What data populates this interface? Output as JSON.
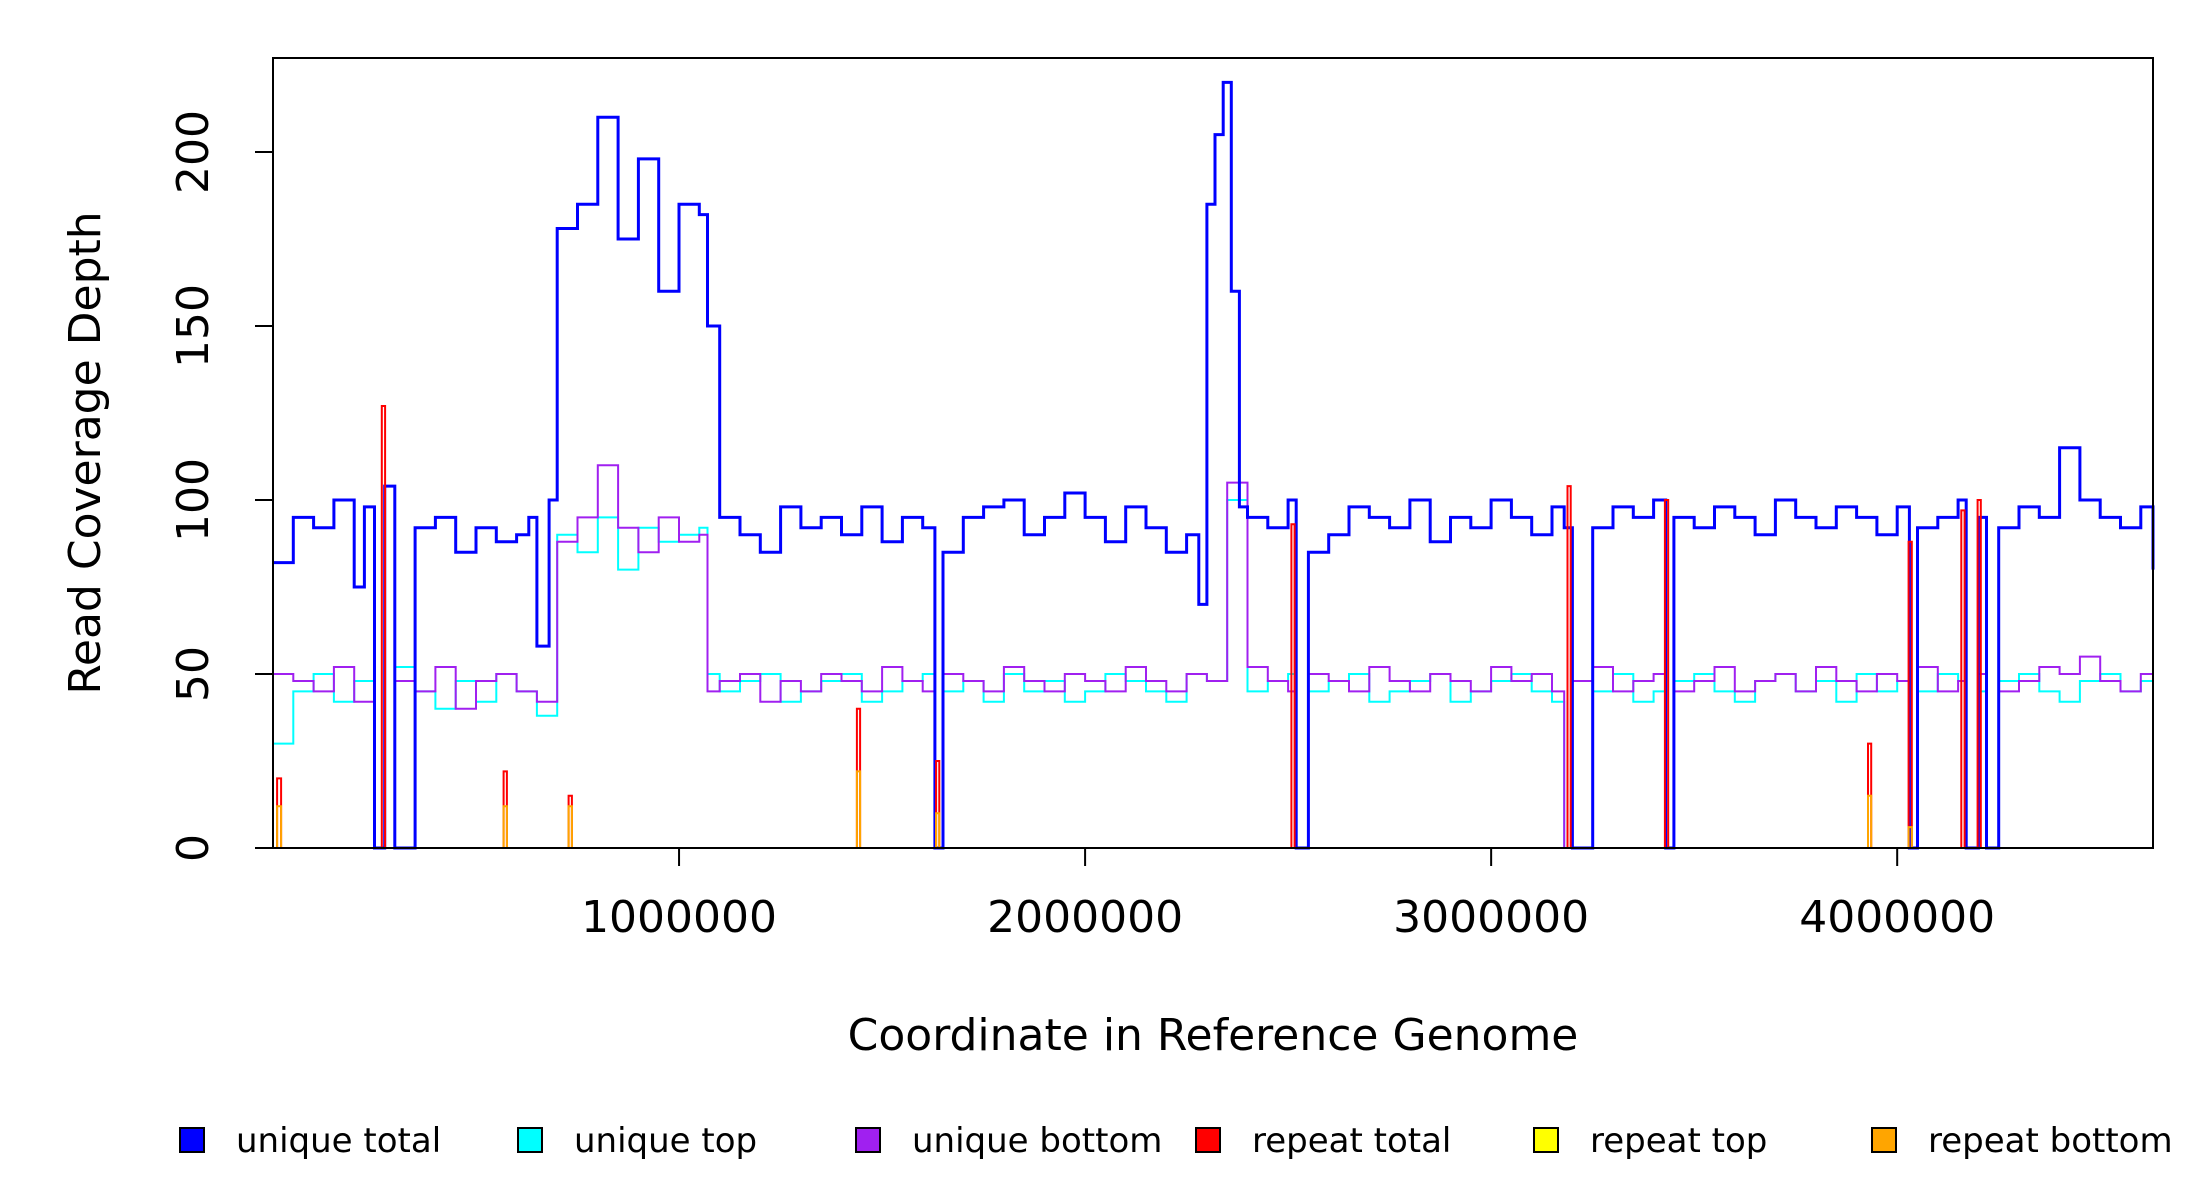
{
  "chart_data": {
    "type": "line",
    "xlabel": "Coordinate in Reference Genome",
    "ylabel": "Read Coverage Depth",
    "xlim": [
      1,
      4630000
    ],
    "ylim": [
      0,
      227
    ],
    "x_ticks": [
      1000000,
      2000000,
      3000000,
      4000000
    ],
    "y_ticks": [
      0,
      50,
      100,
      150,
      200
    ],
    "legend_position": "bottom",
    "series": [
      {
        "name": "unique total",
        "color": "#0000FF",
        "x": [
          0,
          50000,
          100000,
          150000,
          200000,
          225000,
          250000,
          275000,
          300000,
          350000,
          400000,
          450000,
          500000,
          550000,
          600000,
          630000,
          650000,
          680000,
          700000,
          750000,
          800000,
          850000,
          900000,
          950000,
          1000000,
          1050000,
          1070000,
          1100000,
          1150000,
          1200000,
          1250000,
          1300000,
          1350000,
          1400000,
          1450000,
          1500000,
          1550000,
          1600000,
          1630000,
          1650000,
          1700000,
          1750000,
          1800000,
          1850000,
          1900000,
          1950000,
          2000000,
          2050000,
          2100000,
          2150000,
          2200000,
          2250000,
          2280000,
          2300000,
          2320000,
          2340000,
          2360000,
          2380000,
          2400000,
          2450000,
          2500000,
          2520000,
          2550000,
          2600000,
          2650000,
          2700000,
          2750000,
          2800000,
          2850000,
          2900000,
          2950000,
          3000000,
          3050000,
          3100000,
          3150000,
          3180000,
          3200000,
          3250000,
          3300000,
          3350000,
          3400000,
          3430000,
          3450000,
          3500000,
          3550000,
          3600000,
          3650000,
          3700000,
          3750000,
          3800000,
          3850000,
          3900000,
          3950000,
          4000000,
          4030000,
          4050000,
          4100000,
          4150000,
          4170000,
          4200000,
          4220000,
          4250000,
          4300000,
          4350000,
          4400000,
          4450000,
          4500000,
          4550000,
          4600000,
          4630000
        ],
        "values": [
          82,
          95,
          92,
          100,
          75,
          98,
          0,
          104,
          0,
          92,
          95,
          85,
          92,
          88,
          90,
          95,
          58,
          100,
          178,
          185,
          210,
          175,
          198,
          160,
          185,
          182,
          150,
          95,
          90,
          85,
          98,
          92,
          95,
          90,
          98,
          88,
          95,
          92,
          0,
          85,
          95,
          98,
          100,
          90,
          95,
          102,
          95,
          88,
          98,
          92,
          85,
          90,
          70,
          185,
          205,
          220,
          160,
          98,
          95,
          92,
          100,
          0,
          85,
          90,
          98,
          95,
          92,
          100,
          88,
          95,
          92,
          100,
          95,
          90,
          98,
          92,
          0,
          92,
          98,
          95,
          100,
          0,
          95,
          92,
          98,
          95,
          90,
          100,
          95,
          92,
          98,
          95,
          90,
          98,
          0,
          92,
          95,
          100,
          0,
          95,
          0,
          92,
          98,
          95,
          115,
          100,
          95,
          92,
          98,
          80
        ]
      },
      {
        "name": "unique top",
        "color": "#00FFFF",
        "x": [
          0,
          50000,
          100000,
          150000,
          200000,
          250000,
          300000,
          350000,
          400000,
          450000,
          500000,
          550000,
          600000,
          650000,
          700000,
          750000,
          800000,
          850000,
          900000,
          950000,
          1000000,
          1050000,
          1070000,
          1100000,
          1150000,
          1200000,
          1250000,
          1300000,
          1350000,
          1400000,
          1450000,
          1500000,
          1550000,
          1600000,
          1630000,
          1650000,
          1700000,
          1750000,
          1800000,
          1850000,
          1900000,
          1950000,
          2000000,
          2050000,
          2100000,
          2150000,
          2200000,
          2250000,
          2300000,
          2350000,
          2400000,
          2450000,
          2500000,
          2520000,
          2550000,
          2600000,
          2650000,
          2700000,
          2750000,
          2800000,
          2850000,
          2900000,
          2950000,
          3000000,
          3050000,
          3100000,
          3150000,
          3180000,
          3200000,
          3250000,
          3300000,
          3350000,
          3400000,
          3430000,
          3450000,
          3500000,
          3550000,
          3600000,
          3650000,
          3700000,
          3750000,
          3800000,
          3850000,
          3900000,
          3950000,
          4000000,
          4030000,
          4050000,
          4100000,
          4150000,
          4170000,
          4200000,
          4220000,
          4250000,
          4300000,
          4350000,
          4400000,
          4450000,
          4500000,
          4550000,
          4600000,
          4630000
        ],
        "values": [
          30,
          45,
          50,
          42,
          48,
          0,
          52,
          45,
          40,
          48,
          42,
          50,
          45,
          38,
          90,
          85,
          95,
          80,
          92,
          88,
          90,
          92,
          50,
          45,
          48,
          50,
          42,
          45,
          48,
          50,
          42,
          45,
          48,
          50,
          0,
          45,
          48,
          42,
          50,
          45,
          48,
          42,
          45,
          50,
          48,
          45,
          42,
          50,
          48,
          100,
          45,
          48,
          50,
          0,
          45,
          48,
          50,
          42,
          45,
          48,
          50,
          42,
          45,
          48,
          50,
          45,
          42,
          0,
          48,
          45,
          50,
          42,
          45,
          0,
          48,
          50,
          45,
          42,
          48,
          50,
          45,
          48,
          42,
          50,
          45,
          48,
          0,
          45,
          50,
          48,
          0,
          45,
          0,
          48,
          50,
          45,
          42,
          48,
          50,
          45,
          48,
          40
        ]
      },
      {
        "name": "unique bottom",
        "color": "#A020F0",
        "x": [
          0,
          50000,
          100000,
          150000,
          200000,
          250000,
          300000,
          350000,
          400000,
          450000,
          500000,
          550000,
          600000,
          650000,
          700000,
          750000,
          800000,
          850000,
          900000,
          950000,
          1000000,
          1050000,
          1070000,
          1100000,
          1150000,
          1200000,
          1250000,
          1300000,
          1350000,
          1400000,
          1450000,
          1500000,
          1550000,
          1600000,
          1630000,
          1650000,
          1700000,
          1750000,
          1800000,
          1850000,
          1900000,
          1950000,
          2000000,
          2050000,
          2100000,
          2150000,
          2200000,
          2250000,
          2300000,
          2350000,
          2400000,
          2450000,
          2500000,
          2520000,
          2550000,
          2600000,
          2650000,
          2700000,
          2750000,
          2800000,
          2850000,
          2900000,
          2950000,
          3000000,
          3050000,
          3100000,
          3150000,
          3180000,
          3200000,
          3250000,
          3300000,
          3350000,
          3400000,
          3430000,
          3450000,
          3500000,
          3550000,
          3600000,
          3650000,
          3700000,
          3750000,
          3800000,
          3850000,
          3900000,
          3950000,
          4000000,
          4030000,
          4050000,
          4100000,
          4150000,
          4170000,
          4200000,
          4220000,
          4250000,
          4300000,
          4350000,
          4400000,
          4450000,
          4500000,
          4550000,
          4600000,
          4630000
        ],
        "values": [
          50,
          48,
          45,
          52,
          42,
          0,
          48,
          45,
          52,
          40,
          48,
          50,
          45,
          42,
          88,
          95,
          110,
          92,
          85,
          95,
          88,
          90,
          45,
          48,
          50,
          42,
          48,
          45,
          50,
          48,
          45,
          52,
          48,
          45,
          0,
          50,
          48,
          45,
          52,
          48,
          45,
          50,
          48,
          45,
          52,
          48,
          45,
          50,
          48,
          105,
          52,
          48,
          45,
          0,
          50,
          48,
          45,
          52,
          48,
          45,
          50,
          48,
          45,
          52,
          48,
          50,
          45,
          0,
          48,
          52,
          45,
          48,
          50,
          0,
          45,
          48,
          52,
          45,
          48,
          50,
          45,
          52,
          48,
          45,
          50,
          48,
          0,
          52,
          45,
          48,
          0,
          50,
          0,
          45,
          48,
          52,
          50,
          55,
          48,
          45,
          50,
          45
        ]
      },
      {
        "name": "repeat total",
        "color": "#FF0000",
        "x": [
          0,
          10000,
          20000,
          260000,
          268000,
          276000,
          560000,
          568000,
          576000,
          720000,
          728000,
          736000,
          1430000,
          1438000,
          1446000,
          1625000,
          1633000,
          1641000,
          2500000,
          2508000,
          2516000,
          3180000,
          3188000,
          3196000,
          3420000,
          3428000,
          3436000,
          3920000,
          3928000,
          3936000,
          4020000,
          4028000,
          4036000,
          4150000,
          4158000,
          4166000,
          4190000,
          4198000,
          4206000,
          4630000
        ],
        "values": [
          0,
          20,
          0,
          0,
          127,
          0,
          0,
          22,
          0,
          0,
          15,
          0,
          0,
          40,
          0,
          0,
          25,
          0,
          0,
          93,
          0,
          0,
          104,
          0,
          0,
          100,
          0,
          0,
          30,
          0,
          0,
          88,
          0,
          0,
          97,
          0,
          0,
          100,
          0,
          0
        ]
      },
      {
        "name": "repeat top",
        "color": "#FFFF00",
        "x": [
          0,
          4630000
        ],
        "values": [
          0,
          0
        ]
      },
      {
        "name": "repeat bottom",
        "color": "#FFA500",
        "x": [
          0,
          10000,
          20000,
          560000,
          568000,
          576000,
          720000,
          728000,
          736000,
          1430000,
          1438000,
          1446000,
          1625000,
          1633000,
          1641000,
          3920000,
          3928000,
          3936000,
          4020000,
          4028000,
          4036000,
          4630000
        ],
        "values": [
          0,
          12,
          0,
          0,
          12,
          0,
          0,
          12,
          0,
          0,
          22,
          0,
          0,
          10,
          0,
          0,
          15,
          0,
          0,
          6,
          0,
          0
        ]
      }
    ]
  }
}
